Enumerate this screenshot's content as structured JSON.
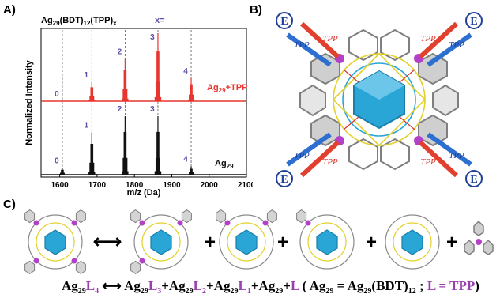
{
  "panels": {
    "a": "A)",
    "b": "B)",
    "c": "C)"
  },
  "chart_data": {
    "type": "line",
    "title_main": "Ag",
    "title_sub29": "29",
    "title_mid": "(BDT)",
    "title_sub12": "12",
    "title_tail": "(TPP)",
    "title_subx": "x",
    "x_eq": "x=",
    "xlabel": "m/z (Da)",
    "ylabel": "Normalized Intensity",
    "xlim": [
      1550,
      2100
    ],
    "xticks": [
      "1600",
      "1700",
      "1800",
      "1900",
      "2000",
      "2100"
    ],
    "xtick_values": [
      1600,
      1700,
      1800,
      1900,
      2000,
      2100
    ],
    "guide_lines": [
      1607,
      1686,
      1775,
      1863,
      1952
    ],
    "series": [
      {
        "name_main": "Ag",
        "name_sub": "29",
        "name_tail": "+TPP",
        "color": "#e8362f",
        "peaks": [
          {
            "x": 1607,
            "y": 0.0,
            "label": "0"
          },
          {
            "x": 1686,
            "y": 0.28,
            "label": "1"
          },
          {
            "x": 1775,
            "y": 0.62,
            "label": "2"
          },
          {
            "x": 1863,
            "y": 1.0,
            "label": "3"
          },
          {
            "x": 1952,
            "y": 0.34,
            "label": "4"
          }
        ]
      },
      {
        "name_main": "Ag",
        "name_sub": "29",
        "name_tail": "",
        "color": "#111111",
        "peaks": [
          {
            "x": 1607,
            "y": 0.1,
            "label": "0"
          },
          {
            "x": 1686,
            "y": 0.62,
            "label": "1"
          },
          {
            "x": 1775,
            "y": 0.86,
            "label": "2"
          },
          {
            "x": 1863,
            "y": 0.86,
            "label": "3"
          },
          {
            "x": 1952,
            "y": 0.12,
            "label": "4"
          }
        ]
      }
    ],
    "peak_label_color": "#5b4fa8"
  },
  "structure_b": {
    "arrow_label": "TPP",
    "e_label": "E",
    "colors": {
      "cluster": "#2aa6d6",
      "ligand_p": "#b43fc8",
      "bond": "#e3d12a",
      "blue_arrow": "#2c6fd0",
      "red_arrow": "#e2402e"
    }
  },
  "equation": {
    "t1": "Ag",
    "t1s": "29",
    "t1L": "L",
    "t1Ls": "4",
    "arrow": "⟷",
    "t2": "Ag",
    "t2s": "29",
    "t2L": "L",
    "t2Ls": "3",
    "p1": "+",
    "t3": "Ag",
    "t3s": "29",
    "t3L": "L",
    "t3Ls": "2",
    "p2": "+",
    "t4": "Ag",
    "t4s": "29",
    "t4L": "L",
    "t4Ls": "1",
    "p3": "+",
    "t5": "Ag",
    "t5s": "29",
    "p4": "+",
    "t6L": "L",
    "paren_open": "( ",
    "d1": "Ag",
    "d1s": "29",
    "eq": " = ",
    "d2": "Ag",
    "d2s": "29",
    "d2m": "(BDT)",
    "d2ms": "12",
    "semi": " ; ",
    "d3": "L = TPP",
    "paren_close": ")"
  },
  "panel_c_symbols": {
    "double_arrow": "⟷",
    "plus": "+"
  }
}
